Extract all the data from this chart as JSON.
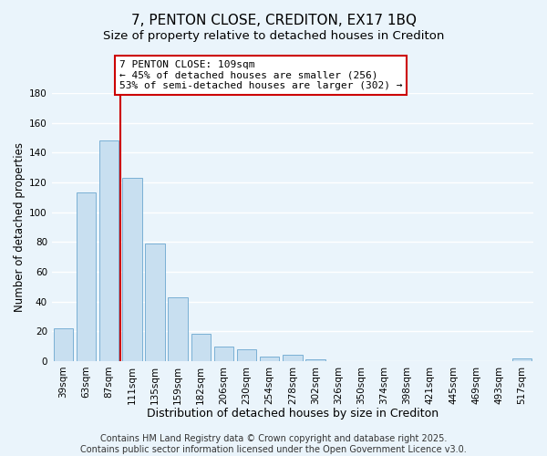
{
  "title": "7, PENTON CLOSE, CREDITON, EX17 1BQ",
  "subtitle": "Size of property relative to detached houses in Crediton",
  "xlabel": "Distribution of detached houses by size in Crediton",
  "ylabel": "Number of detached properties",
  "bar_labels": [
    "39sqm",
    "63sqm",
    "87sqm",
    "111sqm",
    "135sqm",
    "159sqm",
    "182sqm",
    "206sqm",
    "230sqm",
    "254sqm",
    "278sqm",
    "302sqm",
    "326sqm",
    "350sqm",
    "374sqm",
    "398sqm",
    "421sqm",
    "445sqm",
    "469sqm",
    "493sqm",
    "517sqm"
  ],
  "bar_values": [
    22,
    113,
    148,
    123,
    79,
    43,
    18,
    10,
    8,
    3,
    4,
    1,
    0,
    0,
    0,
    0,
    0,
    0,
    0,
    0,
    2
  ],
  "bar_color": "#c8dff0",
  "bar_edge_color": "#7ab0d4",
  "vline_bar_index": 3,
  "vline_color": "#cc0000",
  "ylim": [
    0,
    180
  ],
  "yticks": [
    0,
    20,
    40,
    60,
    80,
    100,
    120,
    140,
    160,
    180
  ],
  "annotation_title": "7 PENTON CLOSE: 109sqm",
  "annotation_line1": "← 45% of detached houses are smaller (256)",
  "annotation_line2": "53% of semi-detached houses are larger (302) →",
  "annotation_box_color": "#ffffff",
  "annotation_box_edge": "#cc0000",
  "footer1": "Contains HM Land Registry data © Crown copyright and database right 2025.",
  "footer2": "Contains public sector information licensed under the Open Government Licence v3.0.",
  "background_color": "#eaf4fb",
  "grid_color": "#ffffff",
  "title_fontsize": 11,
  "subtitle_fontsize": 9.5,
  "xlabel_fontsize": 9,
  "ylabel_fontsize": 8.5,
  "tick_fontsize": 7.5,
  "annotation_fontsize": 8,
  "footer_fontsize": 7
}
